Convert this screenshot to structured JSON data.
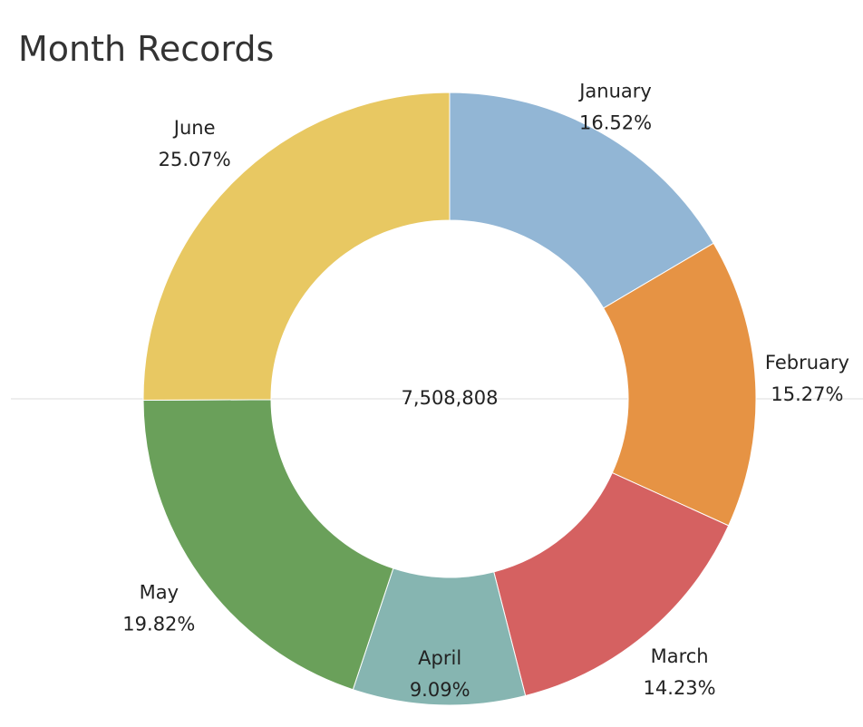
{
  "chart_data": {
    "type": "donut",
    "title": "Month Records",
    "categories": [
      "January",
      "February",
      "March",
      "April",
      "May",
      "June"
    ],
    "values": [
      16.52,
      15.27,
      14.23,
      9.09,
      19.82,
      25.07
    ],
    "value_labels": [
      "16.52%",
      "15.27%",
      "14.23%",
      "9.09%",
      "19.82%",
      "25.07%"
    ],
    "colors": [
      "#92b6d5",
      "#e69344",
      "#d56161",
      "#86b5b1",
      "#6aa05a",
      "#e8c862"
    ],
    "center_text": "7,508,808"
  }
}
